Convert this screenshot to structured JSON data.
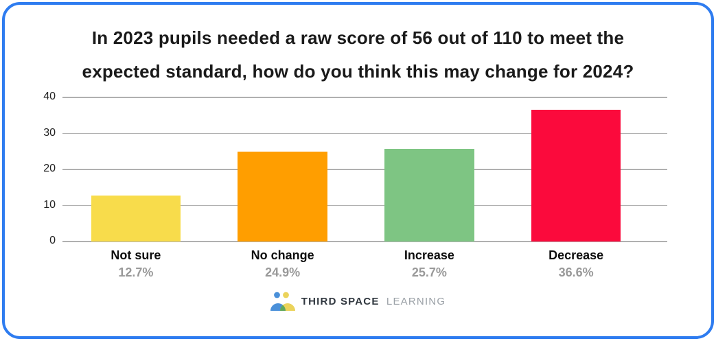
{
  "title": {
    "line1": "In 2023 pupils needed a raw score of 56 out of 110 to meet the",
    "line2": "expected standard, how do you think this may change for 2024?"
  },
  "colors": {
    "border": "#2e7cf0",
    "grid": "#b0b0b0",
    "axis_text": "#222222",
    "category_text": "#0d0d0d",
    "percent_text": "#999999"
  },
  "chart_data": {
    "type": "bar",
    "title": "In 2023 pupils needed a raw score of 56 out of 110 to meet the expected standard, how do you think this may change for 2024?",
    "categories": [
      "Not sure",
      "No change",
      "Increase",
      "Decrease"
    ],
    "values": [
      12.7,
      24.9,
      25.7,
      36.6
    ],
    "percent_labels": [
      "12.7%",
      "24.9%",
      "25.7%",
      "36.6%"
    ],
    "bar_colors": [
      "#f8dc4b",
      "#ff9e00",
      "#7ec583",
      "#fb0a3c"
    ],
    "xlabel": "",
    "ylabel": "",
    "ylim": [
      0,
      40
    ],
    "yticks": [
      0,
      10,
      20,
      30,
      40
    ],
    "grid": true,
    "legend": false
  },
  "footer": {
    "brand_bold": "THIRD SPACE",
    "brand_light": "LEARNING",
    "logo_colors": {
      "blue": "#4a90d9",
      "yellow": "#ebd35b",
      "green": "#5fa75d"
    }
  }
}
